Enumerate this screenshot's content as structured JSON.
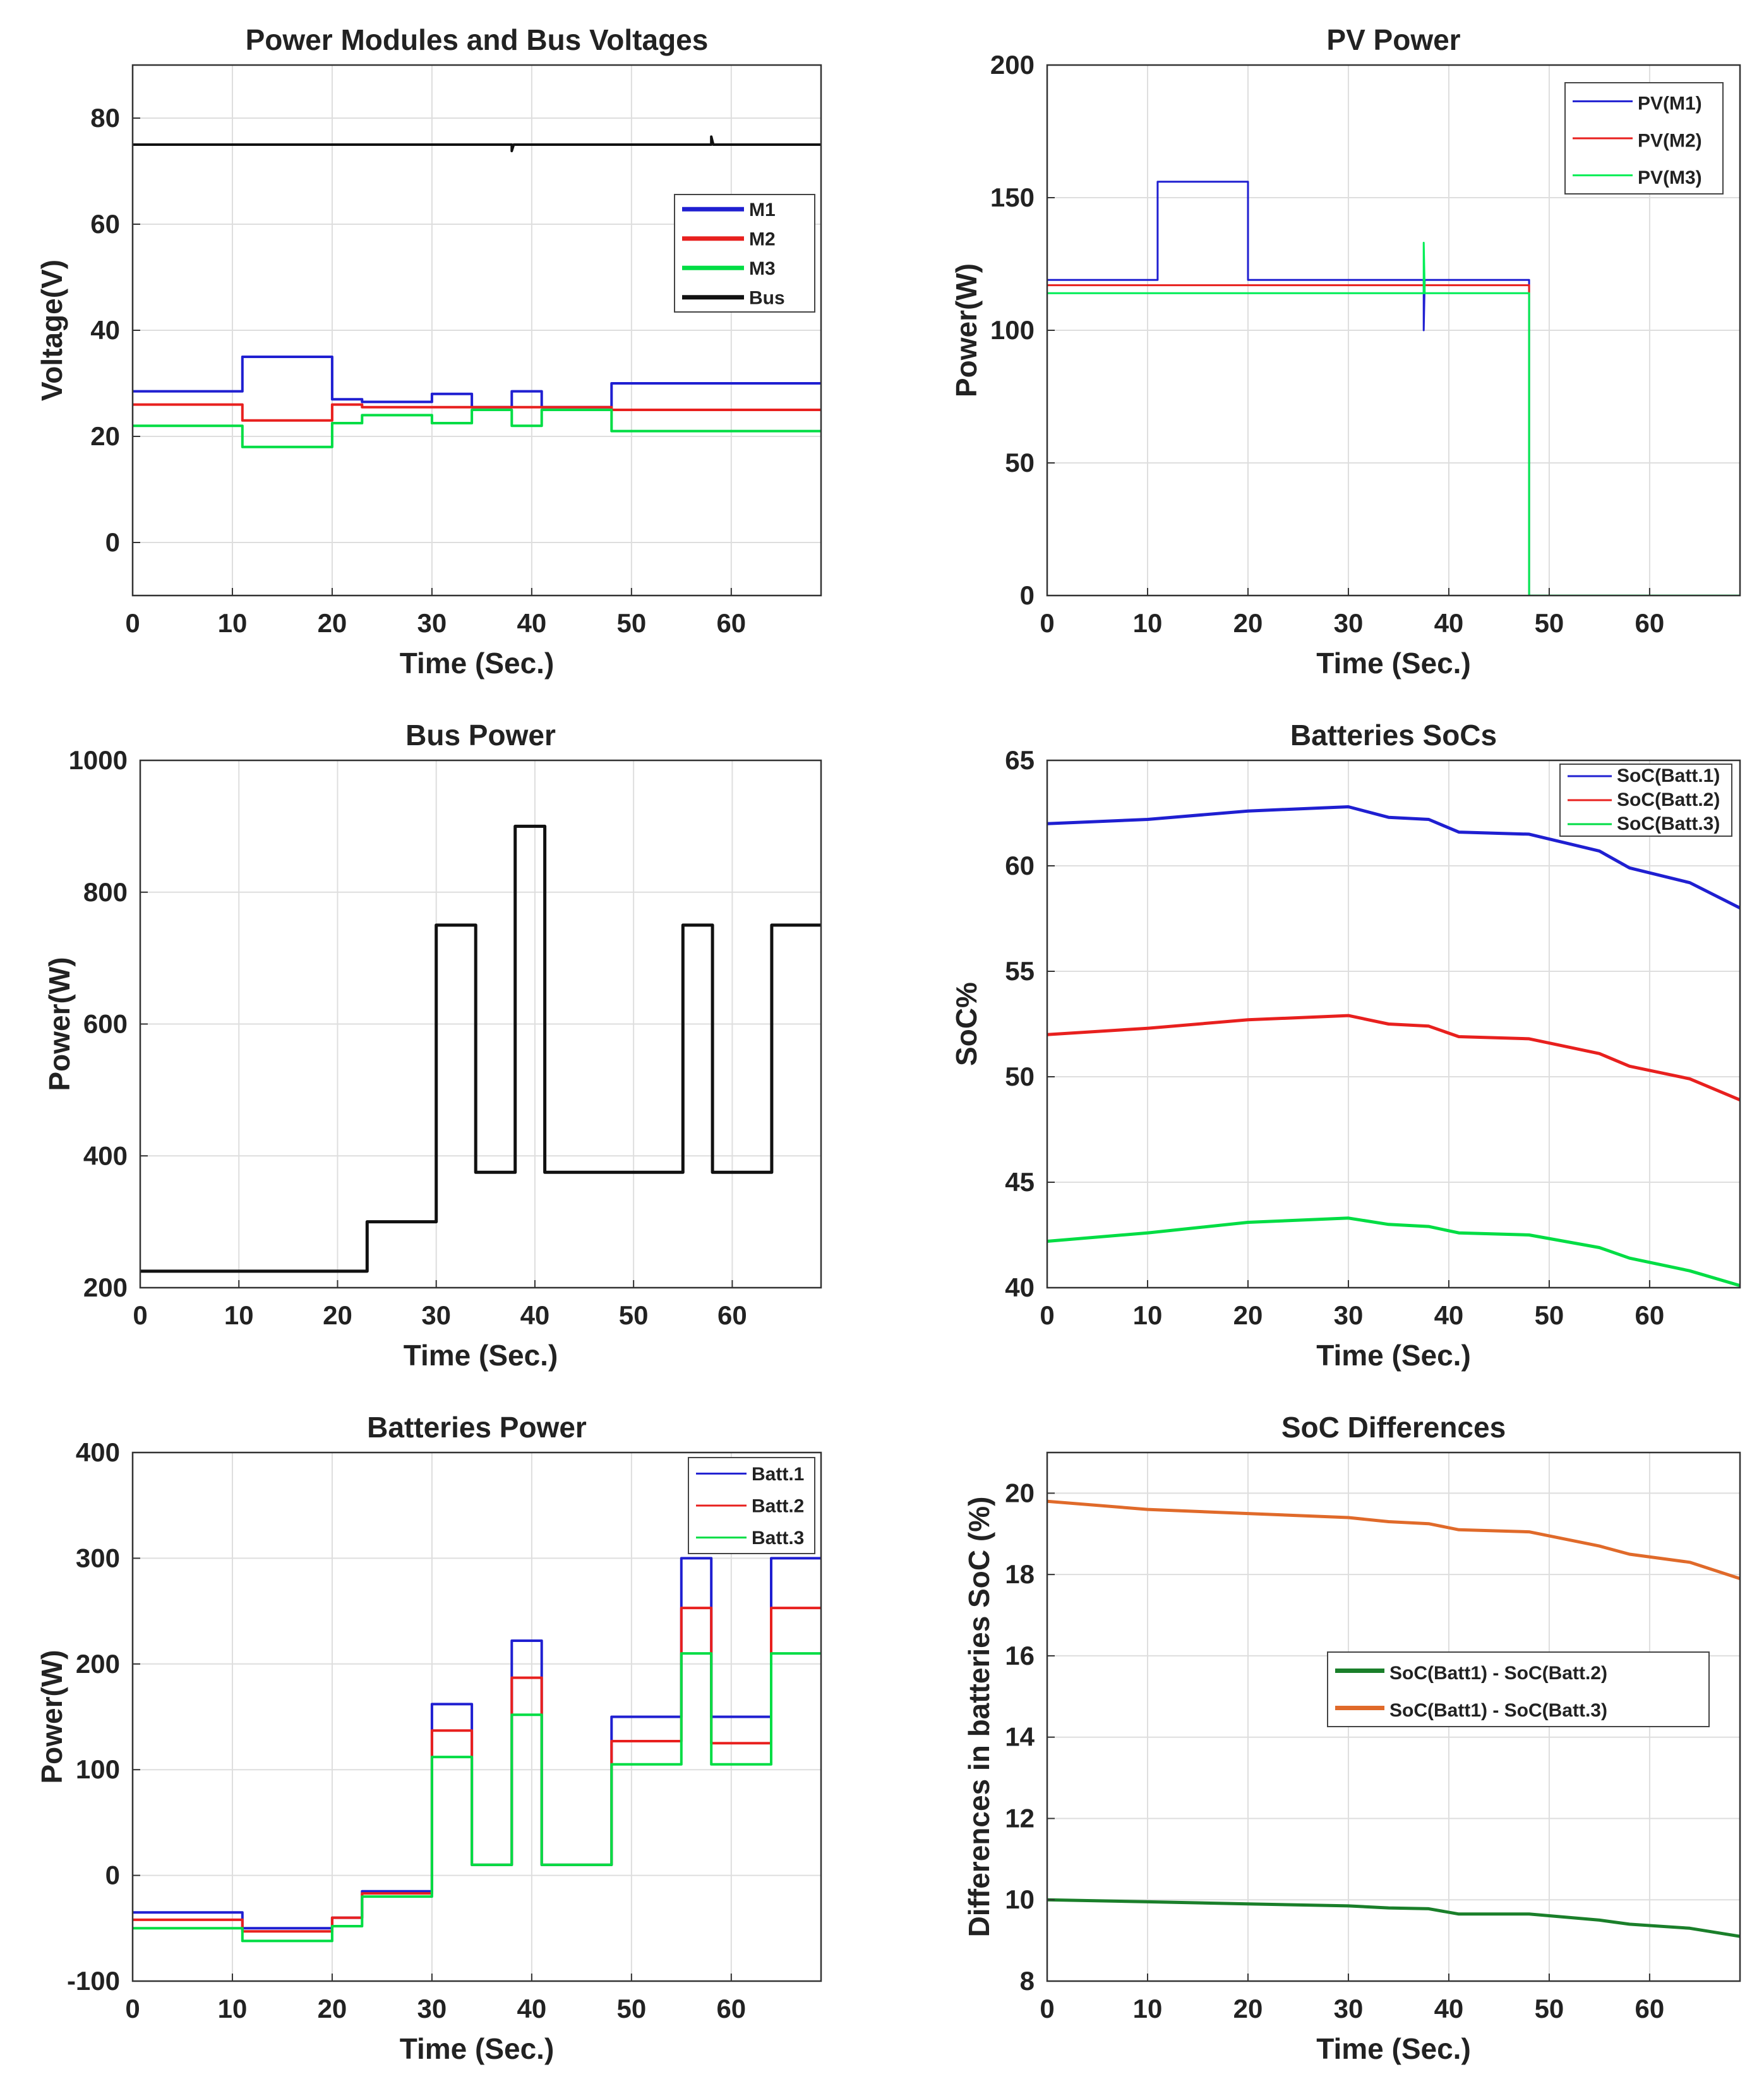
{
  "chart_data": [
    {
      "id": "p1",
      "type": "line",
      "title": "Power Modules and Bus Voltages",
      "xlabel": "Time (Sec.)",
      "ylabel": "Voltage(V)",
      "xlim": [
        0,
        69
      ],
      "ylim": [
        -10,
        90
      ],
      "xticks": [
        0,
        10,
        20,
        30,
        40,
        50,
        60
      ],
      "yticks": [
        0,
        20,
        40,
        60,
        80
      ],
      "grid": true,
      "legend_position": "upper-right",
      "series": [
        {
          "name": "M1",
          "color": "#1f1fd1",
          "x": [
            0,
            11,
            11,
            20,
            20,
            23,
            23,
            30,
            30,
            34,
            34,
            38,
            38,
            41,
            41,
            48,
            48,
            58,
            58,
            69
          ],
          "y": [
            28.5,
            28.5,
            35,
            35,
            27,
            27,
            26.5,
            26.5,
            28,
            28,
            25.5,
            25.5,
            28.5,
            28.5,
            25.5,
            25.5,
            30,
            30,
            30,
            30
          ]
        },
        {
          "name": "M2",
          "color": "#e8201e",
          "x": [
            0,
            11,
            11,
            20,
            20,
            23,
            23,
            48,
            48,
            69
          ],
          "y": [
            26,
            26,
            23,
            23,
            26,
            26,
            25.5,
            25.5,
            25,
            25
          ]
        },
        {
          "name": "M3",
          "color": "#00dd44",
          "x": [
            0,
            11,
            11,
            20,
            20,
            23,
            23,
            30,
            30,
            34,
            34,
            38,
            38,
            41,
            41,
            48,
            48,
            58,
            58,
            69
          ],
          "y": [
            22,
            22,
            18,
            18,
            22.5,
            22.5,
            24,
            24,
            22.5,
            22.5,
            25,
            25,
            22,
            22,
            25,
            25,
            21,
            21,
            21,
            21
          ]
        },
        {
          "name": "Bus",
          "color": "#111111",
          "x": [
            0,
            38,
            38,
            38.2,
            58,
            58,
            58.2,
            69
          ],
          "y": [
            75,
            75,
            73.8,
            75,
            75,
            76.5,
            75,
            75
          ]
        }
      ]
    },
    {
      "id": "p2",
      "type": "line",
      "title": "PV Power",
      "xlabel": "Time (Sec.)",
      "ylabel": "Power(W)",
      "xlim": [
        0,
        69
      ],
      "ylim": [
        0,
        200
      ],
      "xticks": [
        0,
        10,
        20,
        30,
        40,
        50,
        60
      ],
      "yticks": [
        0,
        50,
        100,
        150,
        200
      ],
      "grid": true,
      "legend_position": "upper-right",
      "series": [
        {
          "name": "PV(M1)",
          "color": "#1f1fd1",
          "x": [
            0,
            11,
            11,
            20,
            20,
            37.5,
            37.5,
            37.6,
            48,
            48,
            69
          ],
          "y": [
            119,
            119,
            156,
            156,
            119,
            119,
            100,
            119,
            119,
            0,
            0
          ]
        },
        {
          "name": "PV(M2)",
          "color": "#e8201e",
          "x": [
            0,
            48,
            48,
            69
          ],
          "y": [
            117,
            117,
            0,
            0
          ]
        },
        {
          "name": "PV(M3)",
          "color": "#00ee55",
          "x": [
            0,
            37.5,
            37.5,
            37.6,
            48,
            48,
            69
          ],
          "y": [
            114,
            114,
            133,
            114,
            114,
            0,
            0
          ]
        }
      ]
    },
    {
      "id": "p3",
      "type": "line",
      "title": "Bus Power",
      "xlabel": "Time (Sec.)",
      "ylabel": "Power(W)",
      "xlim": [
        0,
        69
      ],
      "ylim": [
        200,
        1000
      ],
      "xticks": [
        0,
        10,
        20,
        30,
        40,
        50,
        60
      ],
      "yticks": [
        200,
        400,
        600,
        800,
        1000
      ],
      "grid": true,
      "legend_position": "none",
      "series": [
        {
          "name": "Bus",
          "color": "#111111",
          "x": [
            0,
            23,
            23,
            30,
            30,
            34,
            34,
            38,
            38,
            41,
            41,
            55,
            55,
            58,
            58,
            64,
            64,
            69
          ],
          "y": [
            225,
            225,
            300,
            300,
            750,
            750,
            375,
            375,
            900,
            900,
            375,
            375,
            750,
            750,
            375,
            375,
            750,
            750
          ]
        }
      ]
    },
    {
      "id": "p4",
      "type": "line",
      "title": "Batteries SoCs",
      "xlabel": "Time (Sec.)",
      "ylabel": "SoC%",
      "xlim": [
        0,
        69
      ],
      "ylim": [
        40,
        65
      ],
      "xticks": [
        0,
        10,
        20,
        30,
        40,
        50,
        60
      ],
      "yticks": [
        40,
        45,
        50,
        55,
        60,
        65
      ],
      "grid": true,
      "legend_position": "upper-right",
      "series": [
        {
          "name": "SoC(Batt.1)",
          "color": "#1f1fd1",
          "x": [
            0,
            10,
            20,
            30,
            34,
            38,
            41,
            48,
            55,
            58,
            64,
            69
          ],
          "y": [
            62,
            62.2,
            62.6,
            62.8,
            62.3,
            62.2,
            61.6,
            61.5,
            60.7,
            59.9,
            59.2,
            58
          ]
        },
        {
          "name": "SoC(Batt.2)",
          "color": "#e8201e",
          "x": [
            0,
            10,
            20,
            30,
            34,
            38,
            41,
            48,
            55,
            58,
            64,
            69
          ],
          "y": [
            52,
            52.3,
            52.7,
            52.9,
            52.5,
            52.4,
            51.9,
            51.8,
            51.1,
            50.5,
            49.9,
            48.9
          ]
        },
        {
          "name": "SoC(Batt.3)",
          "color": "#00dd44",
          "x": [
            0,
            10,
            20,
            30,
            34,
            38,
            41,
            48,
            55,
            58,
            64,
            69
          ],
          "y": [
            42.2,
            42.6,
            43.1,
            43.3,
            43,
            42.9,
            42.6,
            42.5,
            41.9,
            41.4,
            40.8,
            40.1
          ]
        }
      ]
    },
    {
      "id": "p5",
      "type": "line",
      "title": "Batteries Power",
      "xlabel": "Time (Sec.)",
      "ylabel": "Power(W)",
      "xlim": [
        0,
        69
      ],
      "ylim": [
        -100,
        400
      ],
      "xticks": [
        0,
        10,
        20,
        30,
        40,
        50,
        60
      ],
      "yticks": [
        -100,
        0,
        100,
        200,
        300,
        400
      ],
      "grid": true,
      "legend_position": "upper-right",
      "series": [
        {
          "name": "Batt.1",
          "color": "#1f1fd1",
          "x": [
            0,
            11,
            11,
            20,
            20,
            23,
            23,
            30,
            30,
            34,
            34,
            38,
            38,
            41,
            41,
            48,
            48,
            55,
            55,
            58,
            58,
            64,
            64,
            69
          ],
          "y": [
            -35,
            -35,
            -50,
            -50,
            -40,
            -40,
            -15,
            -15,
            162,
            162,
            10,
            10,
            222,
            222,
            10,
            10,
            150,
            150,
            300,
            300,
            150,
            150,
            300,
            300
          ]
        },
        {
          "name": "Batt.2",
          "color": "#e8201e",
          "x": [
            0,
            11,
            11,
            20,
            20,
            23,
            23,
            30,
            30,
            34,
            34,
            38,
            38,
            41,
            41,
            48,
            48,
            55,
            55,
            58,
            58,
            64,
            64,
            69
          ],
          "y": [
            -42,
            -42,
            -53,
            -53,
            -40,
            -40,
            -17,
            -17,
            137,
            137,
            10,
            10,
            187,
            187,
            10,
            10,
            127,
            127,
            253,
            253,
            125,
            125,
            253,
            253
          ]
        },
        {
          "name": "Batt.3",
          "color": "#00dd44",
          "x": [
            0,
            11,
            11,
            20,
            20,
            23,
            23,
            30,
            30,
            34,
            34,
            38,
            38,
            41,
            41,
            48,
            48,
            55,
            55,
            58,
            58,
            64,
            64,
            69
          ],
          "y": [
            -50,
            -50,
            -62,
            -62,
            -48,
            -48,
            -20,
            -20,
            112,
            112,
            10,
            10,
            152,
            152,
            10,
            10,
            105,
            105,
            210,
            210,
            105,
            105,
            210,
            210
          ]
        }
      ]
    },
    {
      "id": "p6",
      "type": "line",
      "title": "SoC Differences",
      "xlabel": "Time (Sec.)",
      "ylabel": "Differences in batteries SoC (%)",
      "xlim": [
        0,
        69
      ],
      "ylim": [
        8,
        21
      ],
      "xticks": [
        0,
        10,
        20,
        30,
        40,
        50,
        60
      ],
      "yticks": [
        8,
        10,
        12,
        14,
        16,
        18,
        20
      ],
      "grid": true,
      "legend_position": "center-right",
      "series": [
        {
          "name": "SoC(Batt1) - SoC(Batt.2)",
          "color": "#1a7f2a",
          "x": [
            0,
            10,
            20,
            30,
            34,
            38,
            41,
            48,
            55,
            58,
            64,
            69
          ],
          "y": [
            10,
            9.95,
            9.9,
            9.85,
            9.8,
            9.78,
            9.65,
            9.65,
            9.5,
            9.4,
            9.3,
            9.1
          ]
        },
        {
          "name": "SoC(Batt1) - SoC(Batt.3)",
          "color": "#e06a2a",
          "x": [
            0,
            10,
            20,
            30,
            34,
            38,
            41,
            48,
            55,
            58,
            64,
            69
          ],
          "y": [
            19.8,
            19.6,
            19.5,
            19.4,
            19.3,
            19.25,
            19.1,
            19.05,
            18.7,
            18.5,
            18.3,
            17.9
          ]
        }
      ]
    }
  ]
}
